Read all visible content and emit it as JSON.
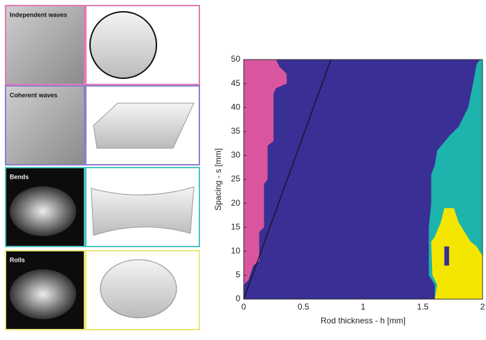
{
  "panels": [
    {
      "label": "Independent waves",
      "color": "#e27bb4"
    },
    {
      "label": "Coherent waves",
      "color": "#8a7fd0"
    },
    {
      "label": "Bends",
      "color": "#4cc4bf"
    },
    {
      "label": "Rolls",
      "color": "#ece67a"
    }
  ],
  "chart_data": {
    "type": "phase",
    "xlabel": "Rod thickness - h [mm]",
    "ylabel": "Spacing - s [mm]",
    "xlim": [
      0,
      2
    ],
    "ylim": [
      0,
      50
    ],
    "xticks": [
      0,
      0.5,
      1,
      1.5,
      2
    ],
    "yticks": [
      0,
      5,
      10,
      15,
      20,
      25,
      30,
      35,
      40,
      45,
      50
    ],
    "background": "#3a2f94",
    "regions": [
      {
        "color": "#d9569e",
        "x": [
          0,
          0.27,
          0.3,
          0.36,
          0.36,
          0.27,
          0.25,
          0.25,
          0.2,
          0.2,
          0.17,
          0.17,
          0.13,
          0.13,
          0.08,
          0.04,
          0
        ],
        "y": [
          50,
          50,
          48.5,
          47,
          45,
          44,
          43,
          33,
          32,
          25,
          24,
          15,
          14,
          8,
          7,
          4,
          3
        ]
      },
      {
        "color": "#1cb4ad",
        "x": [
          1.98,
          1.95,
          1.92,
          1.88,
          1.8,
          1.72,
          1.62,
          1.6,
          1.57,
          1.57,
          1.55,
          1.55,
          1.6,
          1.6,
          2,
          2
        ],
        "y": [
          50,
          49,
          45,
          40,
          36,
          34,
          31,
          28,
          26,
          20,
          15,
          5,
          3,
          0,
          0,
          50
        ]
      },
      {
        "color": "#f4e600",
        "x": [
          1.6,
          2,
          2,
          1.95,
          1.9,
          1.85,
          1.8,
          1.76,
          1.68,
          1.65,
          1.6,
          1.57,
          1.58,
          1.62
        ],
        "y": [
          0,
          0,
          9,
          11,
          12,
          14,
          16,
          19,
          19,
          16,
          13,
          12,
          5,
          3
        ]
      },
      {
        "color": "#3a2f94",
        "x": [
          1.68,
          1.72,
          1.72,
          1.68
        ],
        "y": [
          11,
          11,
          7,
          7
        ]
      }
    ],
    "series": [
      {
        "color": "#111111",
        "x": [
          0,
          0.73
        ],
        "values": [
          0,
          50
        ]
      }
    ]
  }
}
